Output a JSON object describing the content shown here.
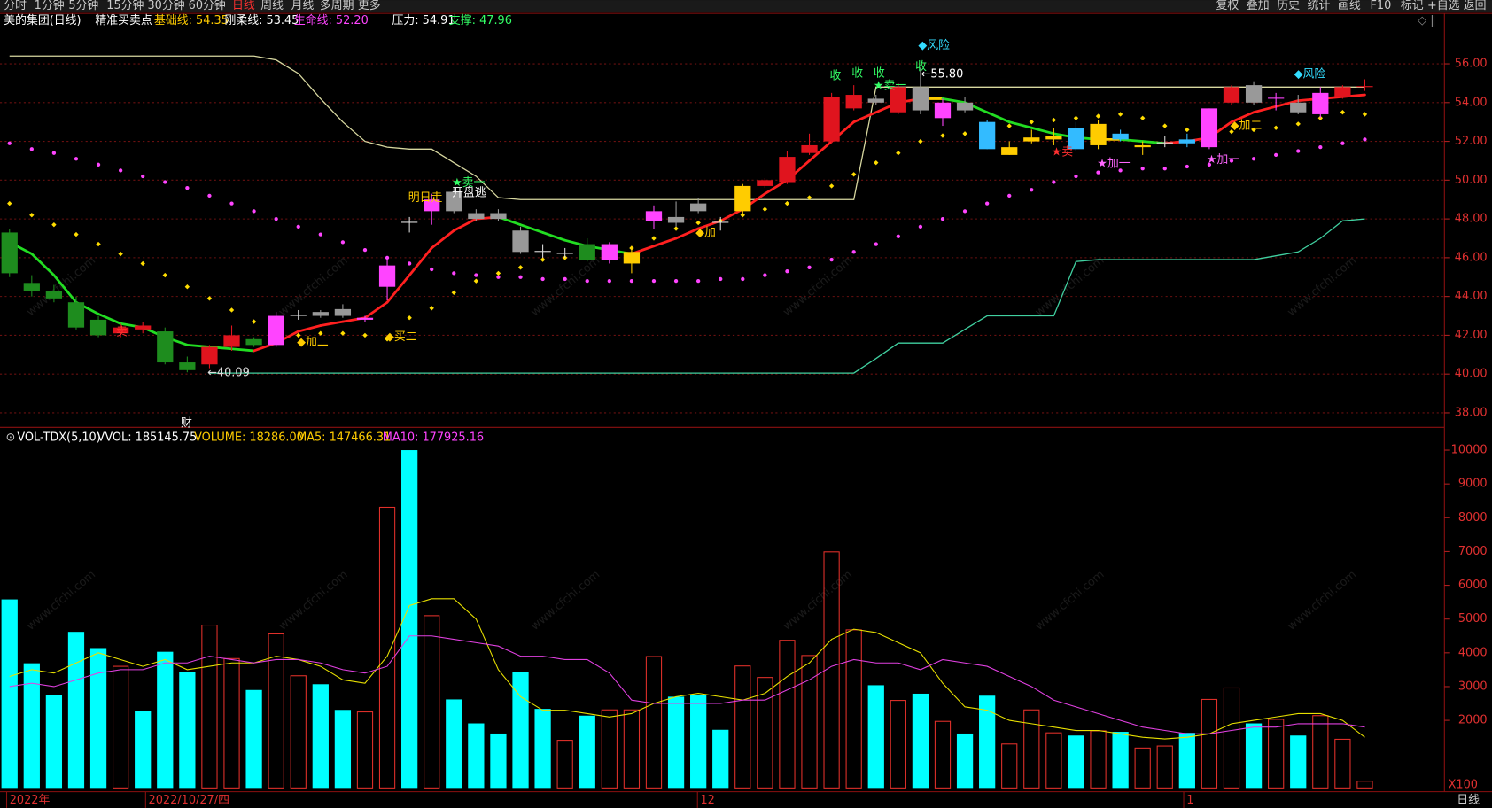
{
  "toolbar": {
    "left": [
      "分时",
      "1分钟",
      "5分钟",
      "15分钟",
      "30分钟",
      "60分钟",
      "日线",
      "周线",
      "月线",
      "多周期",
      "更多"
    ],
    "right": [
      "复权",
      "叠加",
      "历史",
      "统计",
      "画线",
      "F10",
      "标记",
      "+自选",
      "返回"
    ]
  },
  "watermark": "www.cfchi.com",
  "status": "日线",
  "chart_data": [
    {
      "type": "candlestick",
      "title": "美的集团(日线)",
      "subtitle": "精准买卖点",
      "readouts": [
        {
          "text": "基础线: 54.35",
          "color": "#ffcc00"
        },
        {
          "text": "刚柔线: 53.45",
          "color": "#ffffff"
        },
        {
          "text": "生命线: 52.20",
          "color": "#ff44ff"
        },
        {
          "text": "压力: 54.91",
          "color": "#ffffff"
        },
        {
          "text": "支撑: 47.96",
          "color": "#33ff66"
        }
      ],
      "x_labels": [
        "2022年",
        "2022/10/27/四",
        "12",
        "1"
      ],
      "open": [
        47.3,
        44.7,
        44.3,
        43.7,
        42.8,
        42.1,
        42.5,
        42.2,
        40.6,
        40.5,
        41.4,
        41.8,
        41.5,
        43.0,
        43.2,
        43.35,
        42.8,
        44.5,
        47.85,
        48.4,
        49.4,
        48.3,
        48.3,
        47.4,
        46.35,
        46.2,
        46.7,
        45.9,
        45.7,
        47.9,
        48.1,
        48.8,
        47.85,
        48.4,
        49.7,
        49.9,
        51.4,
        52.0,
        53.7,
        54.2,
        53.5,
        54.8,
        53.2,
        54.0,
        53.0,
        51.3,
        52.0,
        52.1,
        52.7,
        51.8,
        52.4,
        51.7,
        51.9,
        52.1,
        51.7,
        54.0,
        54.9,
        54.2,
        54.0,
        53.4,
        54.3,
        54.8
      ],
      "high": [
        47.5,
        45.1,
        44.6,
        44.0,
        43.0,
        42.6,
        42.7,
        42.4,
        40.9,
        41.5,
        42.5,
        41.9,
        43.2,
        43.3,
        43.3,
        43.6,
        43.0,
        45.9,
        48.1,
        49.3,
        49.6,
        48.5,
        48.5,
        47.6,
        46.7,
        46.5,
        47.0,
        46.8,
        46.6,
        48.7,
        48.9,
        49.1,
        48.1,
        49.8,
        50.1,
        51.5,
        52.4,
        54.5,
        54.9,
        54.4,
        55.0,
        55.8,
        54.2,
        54.3,
        53.1,
        52.0,
        52.6,
        52.7,
        53.0,
        53.1,
        52.6,
        52.0,
        52.3,
        52.4,
        53.7,
        54.9,
        55.1,
        54.5,
        54.4,
        54.8,
        54.9,
        55.2
      ],
      "low": [
        45.0,
        44.0,
        43.7,
        42.3,
        41.9,
        41.9,
        42.1,
        40.5,
        40.09,
        40.3,
        41.2,
        41.4,
        41.4,
        42.8,
        42.9,
        42.9,
        42.7,
        43.8,
        47.3,
        47.7,
        48.3,
        47.9,
        47.9,
        46.2,
        46.0,
        46.0,
        45.8,
        45.7,
        45.2,
        47.5,
        47.6,
        48.3,
        47.4,
        48.3,
        49.6,
        49.8,
        51.3,
        51.9,
        53.6,
        53.9,
        53.4,
        53.4,
        52.8,
        53.5,
        51.6,
        51.3,
        51.9,
        51.8,
        51.5,
        51.6,
        52.0,
        51.3,
        51.7,
        51.7,
        51.6,
        53.9,
        53.9,
        53.6,
        53.4,
        53.2,
        54.2,
        54.6
      ],
      "close": [
        45.2,
        44.3,
        43.9,
        42.4,
        42.0,
        42.4,
        42.3,
        40.6,
        40.2,
        41.4,
        42.0,
        41.5,
        43.0,
        43.05,
        43.0,
        43.0,
        42.9,
        45.6,
        47.8,
        49.0,
        48.4,
        48.0,
        48.0,
        46.3,
        46.3,
        46.25,
        45.9,
        46.7,
        46.3,
        48.4,
        47.8,
        48.4,
        47.8,
        49.7,
        50.0,
        51.2,
        51.8,
        54.3,
        54.4,
        54.0,
        54.8,
        53.6,
        54.0,
        53.6,
        51.6,
        51.7,
        52.2,
        52.3,
        51.6,
        52.9,
        52.1,
        51.8,
        51.95,
        51.9,
        53.7,
        54.8,
        54.0,
        54.25,
        53.5,
        54.5,
        54.8,
        54.85
      ],
      "colors": [
        "#1e8c1e",
        "#1e8c1e",
        "#1e8c1e",
        "#1e8c1e",
        "#1e8c1e",
        "#e0141e",
        "#e0141e",
        "#1e8c1e",
        "#1e8c1e",
        "#e0141e",
        "#e0141e",
        "#1e8c1e",
        "#ff44ff",
        "#dddddd",
        "#999999",
        "#999999",
        "#ff44ff",
        "#ff44ff",
        "#dddddd",
        "#ff44ff",
        "#999999",
        "#999999",
        "#999999",
        "#999999",
        "#dddddd",
        "#dddddd",
        "#1e8c1e",
        "#ff44ff",
        "#ffcc00",
        "#ff44ff",
        "#999999",
        "#999999",
        "#dddddd",
        "#ffcc00",
        "#e0141e",
        "#e0141e",
        "#e0141e",
        "#e0141e",
        "#e0141e",
        "#999999",
        "#e0141e",
        "#999999",
        "#ff44ff",
        "#999999",
        "#33bbff",
        "#ffcc00",
        "#ffcc00",
        "#ffcc00",
        "#33bbff",
        "#ffcc00",
        "#33bbff",
        "#ffcc00",
        "#dddddd",
        "#33bbff",
        "#ff44ff",
        "#e0141e",
        "#999999",
        "#ff44ff",
        "#999999",
        "#ff44ff",
        "#e0141e",
        "#e0141e"
      ],
      "series": [
        {
          "color": "#d8d8a0",
          "style": "line",
          "values": [
            56.4,
            56.4,
            56.4,
            56.4,
            56.4,
            56.4,
            56.4,
            56.4,
            56.4,
            56.4,
            56.4,
            56.4,
            56.2,
            55.5,
            54.2,
            53.0,
            52.0,
            51.7,
            51.6,
            51.6,
            50.9,
            50.2,
            49.1,
            49.0,
            49.0,
            49.0,
            49.0,
            49.0,
            49.0,
            49.0,
            49.0,
            49.0,
            49.0,
            49.0,
            49.0,
            49.0,
            49.0,
            49.0,
            49.0,
            54.8,
            54.8,
            54.8,
            54.8,
            54.8,
            54.8,
            54.8,
            54.8,
            54.8,
            54.8,
            54.8,
            54.8,
            54.8,
            54.8,
            54.8,
            54.8,
            54.8,
            54.8,
            54.8,
            54.8,
            54.8,
            54.8,
            54.8
          ]
        },
        {
          "color": "#40d0a0",
          "style": "line",
          "values": [
            null,
            null,
            null,
            null,
            null,
            null,
            null,
            null,
            null,
            40.05,
            40.05,
            40.05,
            40.05,
            40.05,
            40.05,
            40.05,
            40.05,
            40.05,
            40.05,
            40.05,
            40.05,
            40.05,
            40.05,
            40.05,
            40.05,
            40.05,
            40.05,
            40.05,
            40.05,
            40.05,
            40.05,
            40.05,
            40.05,
            40.05,
            40.05,
            40.05,
            40.05,
            40.05,
            40.05,
            40.8,
            41.6,
            41.6,
            41.6,
            42.3,
            43.0,
            43.0,
            43.0,
            43.0,
            45.8,
            45.9,
            45.9,
            45.9,
            45.9,
            45.9,
            45.9,
            45.9,
            45.9,
            46.1,
            46.3,
            47.0,
            47.9,
            48.0
          ]
        },
        {
          "color": "trend",
          "style": "trend",
          "values": [
            46.8,
            46.2,
            45.1,
            43.7,
            43.1,
            42.6,
            42.4,
            41.9,
            41.5,
            41.4,
            41.3,
            41.2,
            41.6,
            42.2,
            42.5,
            42.7,
            42.9,
            43.7,
            45.1,
            46.5,
            47.4,
            48.0,
            48.1,
            47.7,
            47.3,
            46.9,
            46.6,
            46.4,
            46.2,
            46.6,
            47.0,
            47.5,
            47.9,
            48.5,
            49.3,
            50.0,
            51.0,
            52.0,
            53.0,
            53.5,
            54.0,
            54.2,
            54.2,
            54.0,
            53.5,
            53.0,
            52.7,
            52.4,
            52.2,
            52.1,
            52.1,
            52.0,
            51.9,
            52.0,
            52.2,
            53.0,
            53.5,
            53.8,
            54.1,
            54.2,
            54.3,
            54.4
          ]
        },
        {
          "color": "#ff44ff",
          "style": "dots",
          "values": [
            51.9,
            51.6,
            51.4,
            51.1,
            50.8,
            50.5,
            50.2,
            49.9,
            49.6,
            49.2,
            48.8,
            48.4,
            48.0,
            47.6,
            47.2,
            46.8,
            46.4,
            46.0,
            45.7,
            45.4,
            45.2,
            45.1,
            45.0,
            45.0,
            44.9,
            44.9,
            44.8,
            44.8,
            44.8,
            44.8,
            44.8,
            44.8,
            44.9,
            44.9,
            45.1,
            45.3,
            45.5,
            45.9,
            46.3,
            46.7,
            47.1,
            47.6,
            48.0,
            48.4,
            48.8,
            49.2,
            49.5,
            49.9,
            50.2,
            50.4,
            50.5,
            50.6,
            50.6,
            50.7,
            50.8,
            51.0,
            51.1,
            51.3,
            51.5,
            51.7,
            51.9,
            52.1
          ]
        },
        {
          "color": "#ffdd00",
          "style": "diamonds",
          "values": [
            48.8,
            48.2,
            47.7,
            47.2,
            46.7,
            46.2,
            45.7,
            45.1,
            44.5,
            43.9,
            43.3,
            42.7,
            42.3,
            42.0,
            42.1,
            42.1,
            42.0,
            41.8,
            42.9,
            43.4,
            44.2,
            44.8,
            45.2,
            45.5,
            45.9,
            46.0,
            46.2,
            46.3,
            46.5,
            47.0,
            47.5,
            47.8,
            47.9,
            48.2,
            48.5,
            48.8,
            49.1,
            49.7,
            50.3,
            50.9,
            51.4,
            52.0,
            52.3,
            52.4,
            52.6,
            52.8,
            53.0,
            53.1,
            53.2,
            53.3,
            53.4,
            53.2,
            52.8,
            52.6,
            52.4,
            52.5,
            52.6,
            52.7,
            52.9,
            53.2,
            53.5,
            53.4
          ]
        }
      ],
      "annotations": [
        {
          "text": "卖",
          "color": "#ff3030"
        },
        {
          "text": "←40.09",
          "color": "#dddddd"
        },
        {
          "text": "◆加二",
          "color": "#ffcc00"
        },
        {
          "text": "◆买二",
          "color": "#ffcc00"
        },
        {
          "text": "明日走",
          "color": "#ffcc00"
        },
        {
          "text": "开盘逃",
          "color": "#ffffff"
        },
        {
          "text": "★卖一",
          "color": "#33ff66"
        },
        {
          "text": "◆加",
          "color": "#ffcc00"
        },
        {
          "text": "收",
          "color": "#33ff66"
        },
        {
          "text": "收",
          "color": "#33ff66"
        },
        {
          "text": "收",
          "color": "#33ff66"
        },
        {
          "text": "收",
          "color": "#33ff66"
        },
        {
          "text": "★卖一",
          "color": "#33ff66"
        },
        {
          "text": "◆风险",
          "color": "#33ddff"
        },
        {
          "text": "←55.80",
          "color": "#ffffff"
        },
        {
          "text": "★卖",
          "color": "#ff3030"
        },
        {
          "text": "★加一",
          "color": "#ff66ff"
        },
        {
          "text": "★加一",
          "color": "#ff66ff"
        },
        {
          "text": "◆加二",
          "color": "#ffcc00"
        },
        {
          "text": "◆风险",
          "color": "#33ddff"
        },
        {
          "text": "财",
          "color": "#ffffff"
        }
      ],
      "ylim": [
        37.4,
        58.6
      ],
      "yticks": [
        {
          "value": 38,
          "label": "38.00"
        },
        {
          "value": 40,
          "label": "40.00"
        },
        {
          "value": 42,
          "label": "42.00"
        },
        {
          "value": 44,
          "label": "44.00"
        },
        {
          "value": 46,
          "label": "46.00"
        },
        {
          "value": 48,
          "label": "48.00"
        },
        {
          "value": 50,
          "label": "50.00"
        },
        {
          "value": 52,
          "label": "52.00"
        },
        {
          "value": 54,
          "label": "54.00"
        },
        {
          "value": 56,
          "label": "56.00"
        }
      ],
      "grid": true
    },
    {
      "type": "bar",
      "title": "VOL-TDX(5,10)",
      "readouts": [
        {
          "text": "VVOL: 185145.75",
          "color": "#ffffff"
        },
        {
          "text": "VOLUME: 18286.00",
          "color": "#ffcc00"
        },
        {
          "text": "MA5: 147466.31",
          "color": "#ffcc00"
        },
        {
          "text": "MA10: 177925.16",
          "color": "#ff44ff"
        }
      ],
      "unit_label": "X100",
      "up_color": "#e0302a",
      "down_color": "#00ffff",
      "values": [
        5580,
        3690,
        2760,
        4620,
        4140,
        3600,
        2280,
        4030,
        3440,
        4820,
        3830,
        2900,
        4560,
        3320,
        3070,
        2310,
        2250,
        8310,
        10000,
        5100,
        2620,
        1910,
        1610,
        3440,
        2340,
        1410,
        2140,
        2310,
        2310,
        3890,
        2700,
        2760,
        1720,
        3610,
        3270,
        4370,
        3920,
        6990,
        4680,
        3040,
        2590,
        2790,
        1970,
        1610,
        2730,
        1300,
        2310,
        1630,
        1550,
        1690,
        1660,
        1180,
        1240,
        1630,
        2620,
        2960,
        1910,
        2030,
        1550,
        2140,
        1440,
        200
      ],
      "series": [
        {
          "name": "MA5",
          "color": "#e8e000",
          "values": [
            3300,
            3500,
            3400,
            3700,
            4000,
            3800,
            3600,
            3800,
            3500,
            3600,
            3700,
            3700,
            3900,
            3800,
            3600,
            3200,
            3100,
            3900,
            5400,
            5600,
            5600,
            5000,
            3500,
            2700,
            2300,
            2300,
            2200,
            2100,
            2200,
            2500,
            2700,
            2800,
            2700,
            2600,
            2800,
            3300,
            3700,
            4400,
            4700,
            4600,
            4300,
            4000,
            3100,
            2400,
            2300,
            2000,
            1900,
            1800,
            1700,
            1700,
            1600,
            1500,
            1450,
            1500,
            1600,
            1900,
            2000,
            2100,
            2200,
            2200,
            2000,
            1500
          ]
        },
        {
          "name": "MA10",
          "color": "#e040e0",
          "values": [
            3000,
            3100,
            3000,
            3200,
            3400,
            3500,
            3500,
            3700,
            3700,
            3900,
            3800,
            3700,
            3800,
            3800,
            3700,
            3500,
            3400,
            3600,
            4500,
            4500,
            4400,
            4300,
            4200,
            3900,
            3900,
            3800,
            3800,
            3400,
            2600,
            2500,
            2500,
            2500,
            2500,
            2600,
            2600,
            2900,
            3200,
            3600,
            3800,
            3700,
            3700,
            3500,
            3800,
            3700,
            3600,
            3300,
            3000,
            2600,
            2400,
            2200,
            2000,
            1800,
            1700,
            1600,
            1600,
            1700,
            1800,
            1800,
            1900,
            1900,
            1900,
            1800
          ]
        }
      ],
      "ylim": [
        0,
        10500
      ],
      "yticks": [
        2000,
        3000,
        4000,
        5000,
        6000,
        7000,
        8000,
        9000,
        10000
      ],
      "grid": false
    }
  ]
}
